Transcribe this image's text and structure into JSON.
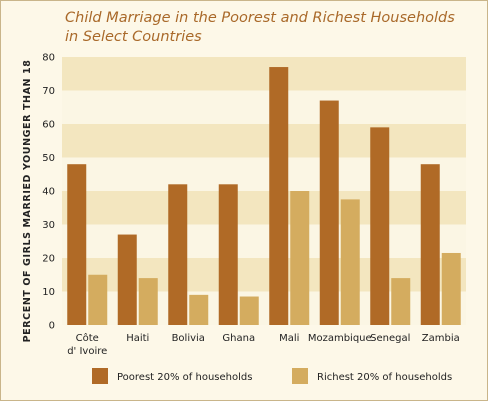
{
  "chart_data": {
    "type": "bar",
    "title_lines": [
      "Child Marriage in the Poorest and Richest Households",
      "in Select Countries"
    ],
    "ylabel": "PERCENT OF GIRLS MARRIED YOUNGER THAN 18",
    "xlabel": "",
    "ylim": [
      0,
      80
    ],
    "yticks": [
      0,
      10,
      20,
      30,
      40,
      50,
      60,
      70,
      80
    ],
    "grid": "alternating horizontal bands",
    "legend_position": "bottom",
    "categories": [
      [
        "Côte",
        "d' Ivoire"
      ],
      [
        "Haiti"
      ],
      [
        "Bolivia"
      ],
      [
        "Ghana"
      ],
      [
        "Mali"
      ],
      [
        "Mozambique"
      ],
      [
        "Senegal"
      ],
      [
        "Zambia"
      ]
    ],
    "series": [
      {
        "name": "Poorest 20% of households",
        "color": "#b06a26",
        "values": [
          48,
          27,
          42,
          42,
          77,
          67,
          59,
          48
        ]
      },
      {
        "name": "Richest 20% of households",
        "color": "#d4ac5f",
        "values": [
          15,
          14,
          9,
          8.5,
          40,
          37.5,
          14,
          21.5
        ]
      }
    ]
  }
}
